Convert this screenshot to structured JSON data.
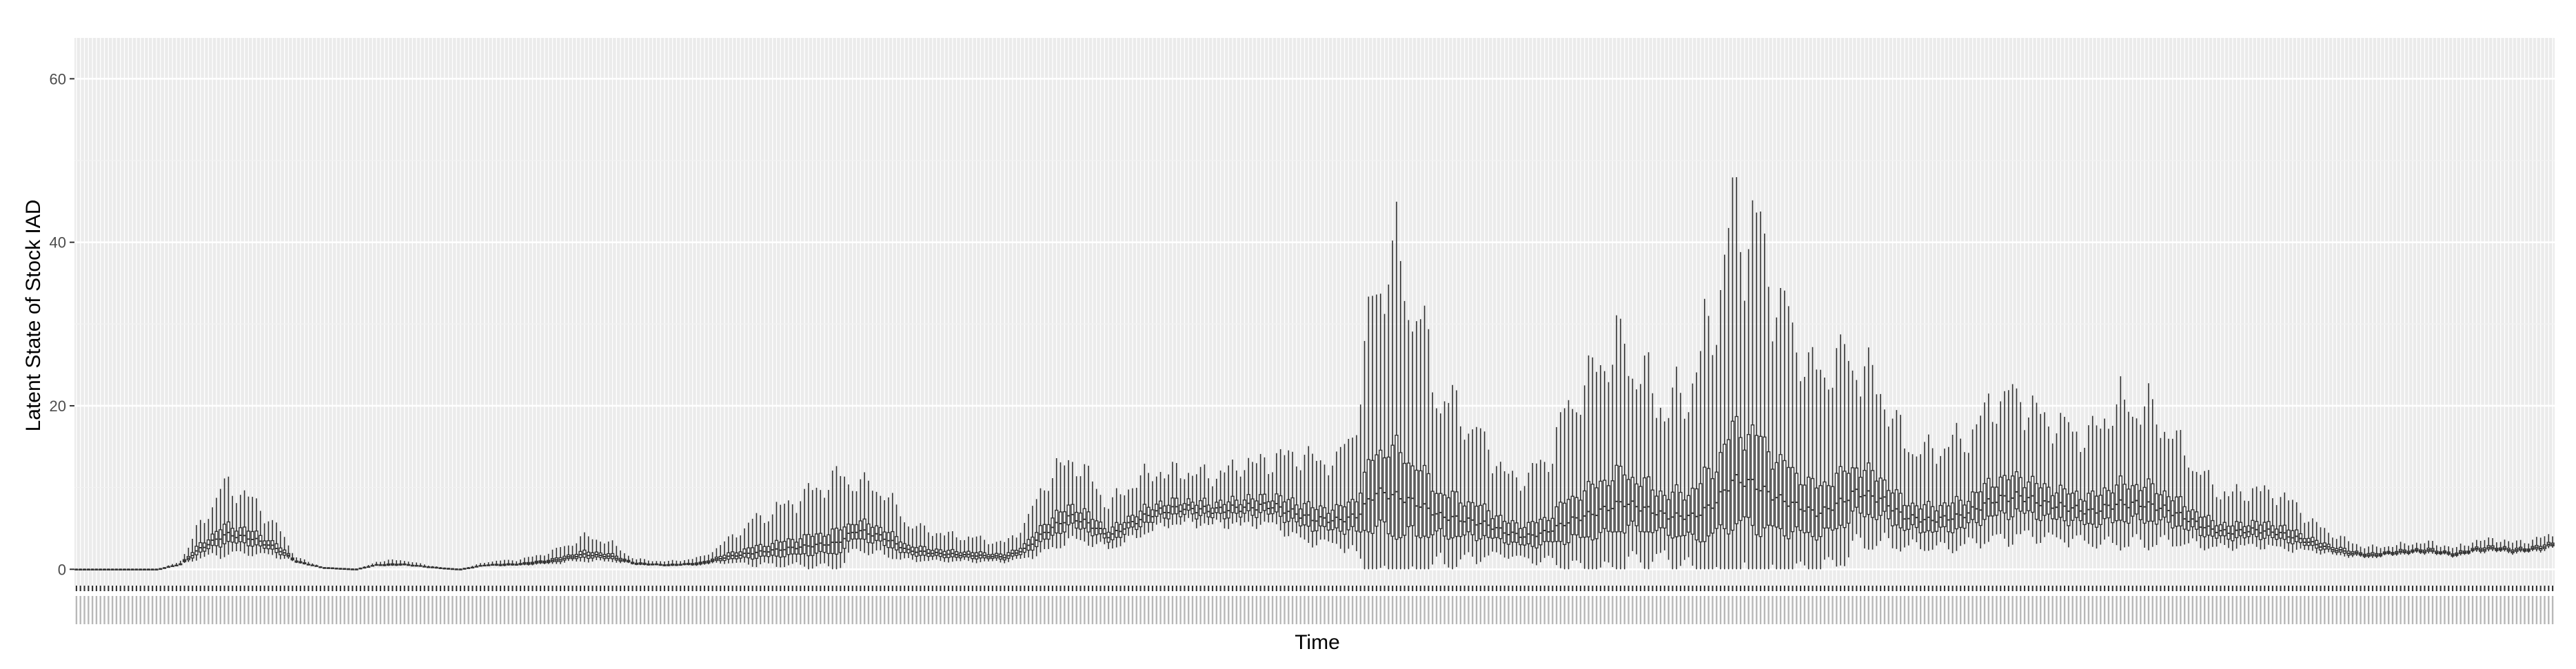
{
  "chart_data": {
    "type": "boxplot",
    "xlabel": "Time",
    "ylabel": "Latent State of Stock IAD",
    "ylim": [
      -2,
      65
    ],
    "yticks": [
      0,
      20,
      40,
      60
    ],
    "ytick_labels": [
      "0",
      "20",
      "40",
      "60"
    ],
    "n_categories": 620,
    "x_tick_labels_legible": false,
    "grid": true,
    "legend": "none",
    "median_trend": [
      [
        0,
        0.0
      ],
      [
        25,
        0.0
      ],
      [
        32,
        0.6
      ],
      [
        38,
        2.5
      ],
      [
        46,
        4.3
      ],
      [
        54,
        3.8
      ],
      [
        62,
        2.5
      ],
      [
        68,
        0.9
      ],
      [
        76,
        0.2
      ],
      [
        86,
        0.0
      ],
      [
        92,
        0.5
      ],
      [
        100,
        0.6
      ],
      [
        108,
        0.3
      ],
      [
        114,
        0.1
      ],
      [
        118,
        0.0
      ],
      [
        126,
        0.5
      ],
      [
        136,
        0.6
      ],
      [
        146,
        1.0
      ],
      [
        156,
        1.8
      ],
      [
        164,
        1.6
      ],
      [
        172,
        0.7
      ],
      [
        182,
        0.5
      ],
      [
        192,
        0.7
      ],
      [
        200,
        1.5
      ],
      [
        208,
        2.0
      ],
      [
        218,
        2.5
      ],
      [
        228,
        3.0
      ],
      [
        234,
        3.2
      ],
      [
        240,
        4.8
      ],
      [
        248,
        4.0
      ],
      [
        256,
        2.3
      ],
      [
        266,
        1.9
      ],
      [
        276,
        1.7
      ],
      [
        286,
        1.5
      ],
      [
        292,
        2.5
      ],
      [
        298,
        4.5
      ],
      [
        306,
        6.5
      ],
      [
        312,
        5.5
      ],
      [
        318,
        4.0
      ],
      [
        324,
        5.5
      ],
      [
        332,
        7.0
      ],
      [
        340,
        7.5
      ],
      [
        350,
        7.2
      ],
      [
        360,
        7.6
      ],
      [
        368,
        7.8
      ],
      [
        374,
        7.0
      ],
      [
        380,
        6.2
      ],
      [
        388,
        6.0
      ],
      [
        394,
        6.5
      ],
      [
        400,
        9.5
      ],
      [
        406,
        9.0
      ],
      [
        412,
        8.2
      ],
      [
        420,
        6.5
      ],
      [
        428,
        6.0
      ],
      [
        434,
        5.5
      ],
      [
        440,
        4.5
      ],
      [
        446,
        4.0
      ],
      [
        452,
        4.5
      ],
      [
        460,
        6.0
      ],
      [
        468,
        7.0
      ],
      [
        476,
        8.2
      ],
      [
        482,
        7.5
      ],
      [
        490,
        6.5
      ],
      [
        498,
        6.5
      ],
      [
        504,
        8.0
      ],
      [
        510,
        11.0
      ],
      [
        516,
        10.5
      ],
      [
        522,
        9.0
      ],
      [
        528,
        8.0
      ],
      [
        536,
        6.8
      ],
      [
        542,
        8.0
      ],
      [
        548,
        9.5
      ],
      [
        556,
        8.5
      ],
      [
        562,
        6.5
      ],
      [
        570,
        6.0
      ],
      [
        580,
        6.5
      ],
      [
        590,
        8.5
      ],
      [
        598,
        9.0
      ],
      [
        606,
        8.0
      ],
      [
        614,
        7.5
      ],
      [
        620,
        7.0
      ],
      [
        628,
        8.0
      ],
      [
        636,
        8.0
      ],
      [
        642,
        7.5
      ],
      [
        648,
        6.5
      ],
      [
        656,
        5.0
      ],
      [
        662,
        4.5
      ],
      [
        670,
        4.8
      ],
      [
        676,
        4.6
      ],
      [
        682,
        4.0
      ],
      [
        688,
        3.2
      ],
      [
        694,
        2.5
      ],
      [
        700,
        2.0
      ],
      [
        706,
        1.7
      ],
      [
        712,
        2.0
      ],
      [
        718,
        2.2
      ],
      [
        724,
        2.3
      ],
      [
        732,
        1.8
      ],
      [
        738,
        2.4
      ],
      [
        744,
        2.6
      ],
      [
        750,
        2.3
      ],
      [
        756,
        2.5
      ],
      [
        762,
        3.0
      ]
    ],
    "spread_trend": [
      [
        0,
        0.0
      ],
      [
        25,
        0.0
      ],
      [
        32,
        0.3
      ],
      [
        38,
        0.6
      ],
      [
        46,
        0.7
      ],
      [
        54,
        0.6
      ],
      [
        62,
        0.5
      ],
      [
        68,
        0.25
      ],
      [
        76,
        0.1
      ],
      [
        86,
        0.0
      ],
      [
        92,
        0.3
      ],
      [
        100,
        0.35
      ],
      [
        108,
        0.2
      ],
      [
        114,
        0.1
      ],
      [
        118,
        0.05
      ],
      [
        126,
        0.3
      ],
      [
        136,
        0.35
      ],
      [
        146,
        0.45
      ],
      [
        156,
        0.55
      ],
      [
        164,
        0.5
      ],
      [
        172,
        0.3
      ],
      [
        182,
        0.3
      ],
      [
        192,
        0.4
      ],
      [
        200,
        0.6
      ],
      [
        208,
        0.9
      ],
      [
        218,
        1.0
      ],
      [
        228,
        1.1
      ],
      [
        234,
        1.2
      ],
      [
        240,
        0.6
      ],
      [
        248,
        0.7
      ],
      [
        256,
        0.65
      ],
      [
        266,
        0.6
      ],
      [
        276,
        0.55
      ],
      [
        286,
        0.5
      ],
      [
        292,
        0.6
      ],
      [
        298,
        0.65
      ],
      [
        306,
        0.55
      ],
      [
        312,
        0.5
      ],
      [
        318,
        0.45
      ],
      [
        324,
        0.45
      ],
      [
        332,
        0.35
      ],
      [
        340,
        0.3
      ],
      [
        350,
        0.3
      ],
      [
        360,
        0.35
      ],
      [
        368,
        0.35
      ],
      [
        374,
        0.5
      ],
      [
        380,
        0.6
      ],
      [
        388,
        0.6
      ],
      [
        394,
        0.9
      ],
      [
        400,
        1.4
      ],
      [
        406,
        1.6
      ],
      [
        412,
        1.5
      ],
      [
        420,
        1.1
      ],
      [
        428,
        1.0
      ],
      [
        434,
        0.9
      ],
      [
        440,
        0.75
      ],
      [
        446,
        0.9
      ],
      [
        452,
        1.0
      ],
      [
        460,
        1.2
      ],
      [
        468,
        1.3
      ],
      [
        476,
        1.2
      ],
      [
        482,
        1.1
      ],
      [
        490,
        1.0
      ],
      [
        498,
        1.3
      ],
      [
        504,
        1.5
      ],
      [
        510,
        1.5
      ],
      [
        516,
        1.5
      ],
      [
        522,
        1.5
      ],
      [
        528,
        1.3
      ],
      [
        536,
        1.2
      ],
      [
        542,
        1.1
      ],
      [
        548,
        0.85
      ],
      [
        556,
        0.8
      ],
      [
        562,
        0.7
      ],
      [
        570,
        0.7
      ],
      [
        580,
        0.7
      ],
      [
        590,
        0.7
      ],
      [
        598,
        0.7
      ],
      [
        606,
        0.65
      ],
      [
        614,
        0.65
      ],
      [
        620,
        0.7
      ],
      [
        628,
        0.75
      ],
      [
        636,
        0.75
      ],
      [
        642,
        0.7
      ],
      [
        648,
        0.65
      ],
      [
        656,
        0.55
      ],
      [
        662,
        0.5
      ],
      [
        670,
        0.5
      ],
      [
        676,
        0.5
      ],
      [
        682,
        0.5
      ],
      [
        688,
        0.4
      ],
      [
        694,
        0.35
      ],
      [
        700,
        0.3
      ],
      [
        706,
        0.25
      ],
      [
        712,
        0.2
      ],
      [
        718,
        0.2
      ],
      [
        724,
        0.2
      ],
      [
        732,
        0.2
      ],
      [
        738,
        0.2
      ],
      [
        744,
        0.2
      ],
      [
        750,
        0.2
      ],
      [
        756,
        0.2
      ],
      [
        762,
        0.2
      ]
    ],
    "colors": {
      "panel_background": "#ebebeb",
      "grid_major": "#ffffff",
      "grid_minor": "#f2f2f2",
      "box_stroke": "#333333",
      "box_fill": "#ffffff",
      "tick_text": "#4d4d4d",
      "axis_title": "#000000"
    }
  }
}
